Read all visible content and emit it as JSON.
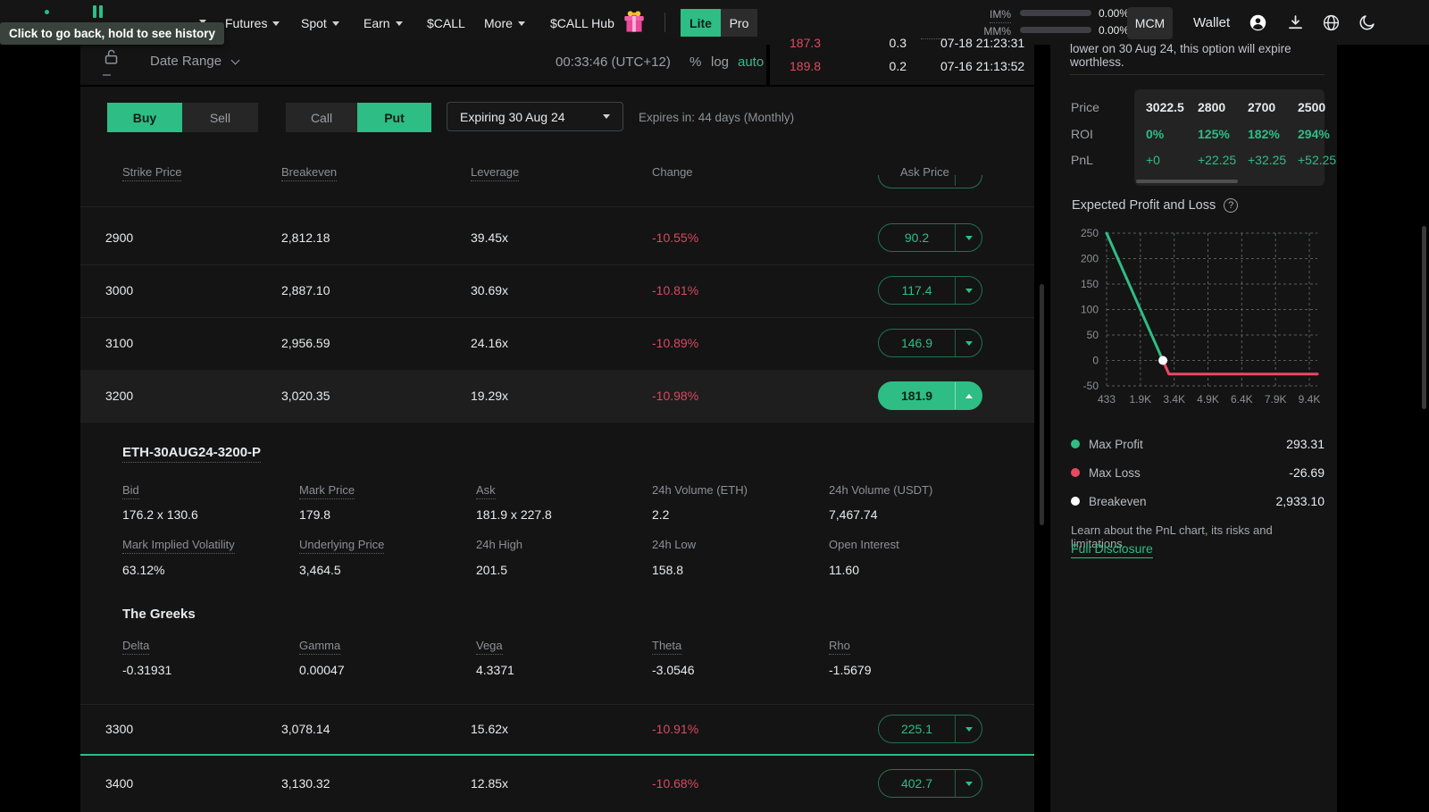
{
  "tooltip": {
    "text": "Click to go back, hold to see history"
  },
  "header": {
    "nav": {
      "futures": "Futures",
      "spot": "Spot",
      "earn": "Earn",
      "call": "$CALL",
      "more": "More",
      "call_hub": "$CALL Hub"
    },
    "mode": {
      "lite": "Lite",
      "pro": "Pro",
      "active": "Lite"
    },
    "margin": {
      "im_label": "IM%",
      "im_value": "0.00%",
      "mm_label": "MM%",
      "mm_value": "0.00%"
    },
    "mcm": "MCM",
    "wallet": "Wallet"
  },
  "toolbar": {
    "date_range": "Date Range",
    "clock": "00:33:46 (UTC+12)",
    "percent": "%",
    "log": "log",
    "auto": "auto"
  },
  "trades": {
    "rows": [
      {
        "price": "187.3",
        "size": "0.3",
        "time": "07-18 21:23:31"
      },
      {
        "price": "189.8",
        "size": "0.2",
        "time": "07-16 21:13:52"
      }
    ]
  },
  "controls": {
    "buy": "Buy",
    "sell": "Sell",
    "call": "Call",
    "put": "Put",
    "expiry": "Expiring 30 Aug 24",
    "expires_in": "Expires in: 44 days (Monthly)"
  },
  "table": {
    "headers": {
      "strike": "Strike Price",
      "breakeven": "Breakeven",
      "leverage": "Leverage",
      "change": "Change",
      "ask": "Ask Price"
    },
    "rows": [
      {
        "strike": "2900",
        "breakeven": "2,812.18",
        "leverage": "39.45x",
        "change": "-10.55%",
        "ask": "90.2"
      },
      {
        "strike": "3000",
        "breakeven": "2,887.10",
        "leverage": "30.69x",
        "change": "-10.81%",
        "ask": "117.4"
      },
      {
        "strike": "3100",
        "breakeven": "2,956.59",
        "leverage": "24.16x",
        "change": "-10.89%",
        "ask": "146.9"
      },
      {
        "strike": "3200",
        "breakeven": "3,020.35",
        "leverage": "19.29x",
        "change": "-10.98%",
        "ask": "181.9"
      },
      {
        "strike": "3300",
        "breakeven": "3,078.14",
        "leverage": "15.62x",
        "change": "-10.91%",
        "ask": "225.1"
      },
      {
        "strike": "3400",
        "breakeven": "3,130.32",
        "leverage": "12.85x",
        "change": "-10.68%",
        "ask": "402.7"
      }
    ]
  },
  "detail": {
    "title": "ETH-30AUG24-3200-P",
    "fields": [
      {
        "label": "Bid",
        "value": "176.2 x 130.6"
      },
      {
        "label": "Mark Price",
        "value": "179.8"
      },
      {
        "label": "Ask",
        "value": "181.9 x 227.8"
      },
      {
        "label": "24h Volume (ETH)",
        "value": "2.2"
      },
      {
        "label": "24h Volume (USDT)",
        "value": "7,467.74"
      },
      {
        "label": "Mark Implied Volatility",
        "value": "63.12%"
      },
      {
        "label": "Underlying Price",
        "value": "3,464.5"
      },
      {
        "label": "24h High",
        "value": "201.5"
      },
      {
        "label": "24h Low",
        "value": "158.8"
      },
      {
        "label": "Open Interest",
        "value": "11.60"
      }
    ],
    "greeks_title": "The Greeks",
    "greeks": [
      {
        "label": "Delta",
        "value": "-0.31931"
      },
      {
        "label": "Gamma",
        "value": "0.00047"
      },
      {
        "label": "Vega",
        "value": "4.3371"
      },
      {
        "label": "Theta",
        "value": "-3.0546"
      },
      {
        "label": "Rho",
        "value": "-1.5679"
      }
    ]
  },
  "panel": {
    "note": "lower on 30 Aug 24, this option will expire worthless.",
    "scenario": {
      "price_label": "Price",
      "roi_label": "ROI",
      "pnl_label": "PnL",
      "prices": [
        "3022.5",
        "2800",
        "2700",
        "2500"
      ],
      "roi": [
        "0%",
        "125%",
        "182%",
        "294%"
      ],
      "pnl": [
        "+0",
        "+22.25",
        "+32.25",
        "+52.25"
      ]
    },
    "chart_title": "Expected Profit and Loss",
    "legend": [
      {
        "label": "Max Profit",
        "value": "293.31",
        "color": "#2ebd85"
      },
      {
        "label": "Max Loss",
        "value": "-26.69",
        "color": "#e8495f"
      },
      {
        "label": "Breakeven",
        "value": "2,933.10",
        "color": "#ffffff"
      }
    ],
    "learn": "Learn about the PnL chart, its risks and limitations.",
    "disclosure": "Full Disclosure"
  },
  "chart_data": {
    "type": "line",
    "title": "Expected Profit and Loss",
    "x_ticks": {
      "values": [
        433,
        1933,
        3433,
        4933,
        6433,
        7933,
        9433
      ],
      "labels": [
        "433",
        "1.9K",
        "3.4K",
        "4.9K",
        "6.4K",
        "7.9K",
        "9.4K"
      ]
    },
    "y_ticks": [
      250,
      200,
      150,
      100,
      50,
      0,
      -50
    ],
    "xlim": [
      433,
      9433
    ],
    "ylim": [
      -50,
      250
    ],
    "grid": "dashed",
    "legend_position": "below",
    "series": [
      {
        "name": "profit",
        "color": "#2ebd85",
        "points": [
          [
            433,
            250
          ],
          [
            2933.1,
            0
          ]
        ]
      },
      {
        "name": "loss",
        "color": "#ef4666",
        "points": [
          [
            2933.1,
            0
          ],
          [
            3200,
            -26.69
          ],
          [
            9433,
            -26.69
          ]
        ]
      }
    ],
    "breakeven_point": {
      "x": 2933.1,
      "y": 0
    },
    "max_profit": 293.31,
    "max_loss": -26.69,
    "breakeven": 2933.1
  },
  "colors": {
    "accent": "#2ebd85",
    "red": "#d84960",
    "chart_red": "#ef4666"
  }
}
